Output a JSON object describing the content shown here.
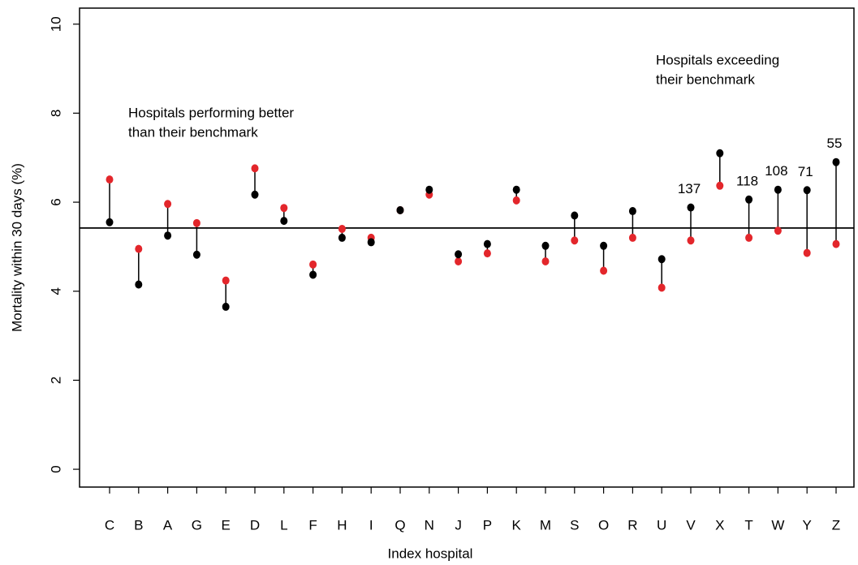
{
  "chart_data": {
    "type": "dot-comparison",
    "y_label": "Mortality within 30 days (%)",
    "x_label": "Index hospital",
    "categories": [
      "C",
      "B",
      "A",
      "G",
      "E",
      "D",
      "L",
      "F",
      "H",
      "I",
      "Q",
      "N",
      "J",
      "P",
      "K",
      "M",
      "S",
      "O",
      "R",
      "U",
      "V",
      "X",
      "T",
      "W",
      "Y",
      "Z"
    ],
    "series": [
      {
        "color": "#e3262b",
        "values": [
          6.51,
          4.95,
          5.96,
          5.53,
          4.24,
          6.76,
          5.87,
          4.6,
          5.4,
          5.2,
          5.82,
          6.17,
          4.67,
          4.85,
          6.04,
          4.67,
          5.14,
          4.46,
          5.2,
          4.08,
          5.14,
          6.37,
          5.2,
          5.36,
          4.86,
          5.06
        ]
      },
      {
        "color": "#000000",
        "values": [
          5.55,
          4.15,
          5.25,
          4.82,
          3.65,
          6.17,
          5.58,
          4.37,
          5.2,
          5.1,
          5.82,
          6.28,
          4.83,
          5.06,
          6.28,
          5.02,
          5.7,
          5.02,
          5.8,
          4.72,
          5.88,
          7.1,
          6.06,
          6.28,
          6.27,
          6.9
        ],
        "point_labels": [
          null,
          null,
          null,
          null,
          null,
          null,
          null,
          null,
          null,
          null,
          null,
          null,
          null,
          null,
          null,
          null,
          null,
          null,
          null,
          null,
          "137",
          null,
          "118",
          "108",
          "71",
          "55"
        ]
      }
    ],
    "reference_line": 5.42,
    "annotations": [
      {
        "lines": [
          "Hospitals performing better",
          "than their benchmark"
        ]
      },
      {
        "lines": [
          "Hospitals exceeding",
          "their benchmark"
        ]
      }
    ],
    "ylim": [
      -0.4,
      10.36
    ],
    "yticks": [
      0,
      2,
      4,
      6,
      8,
      10
    ]
  }
}
